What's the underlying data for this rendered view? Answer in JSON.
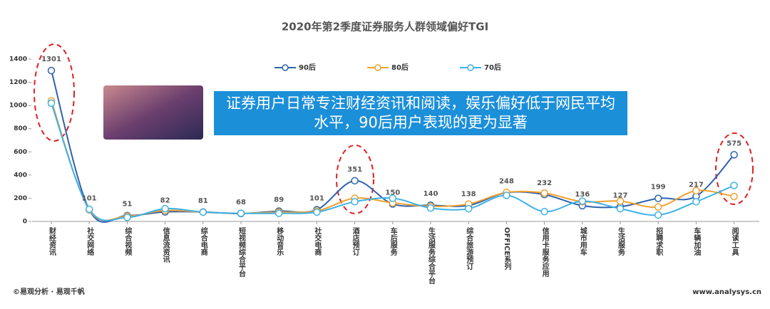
{
  "chart_data": {
    "type": "line",
    "title": "2020年第2季度证券服务人群领域偏好TGI",
    "annotation": [
      "证券用户日常专注财经资讯和阅读，娱乐偏好低于网民平均",
      "水平，90后用户表现的更为显著"
    ],
    "source": "©易观分析 · 易观千帆",
    "website": "www.analysys.cn",
    "categories": [
      "财经资讯",
      "社交网络",
      "综合视频",
      "信息流资讯",
      "综合电商",
      "短视频综合平台",
      "移动音乐",
      "社交电商",
      "酒店预订",
      "车后服务",
      "生活服务综合平台",
      "综合旅游预订",
      "OFFICE系列",
      "信用卡服务应用",
      "城市用车",
      "生活服务",
      "招聘求职",
      "车辆加油",
      "阅读工具"
    ],
    "series": [
      {
        "name": "90后",
        "color": "#2f62ad",
        "data_labels": true,
        "values": [
          1301,
          101,
          51,
          82,
          81,
          68,
          89,
          101,
          351,
          150,
          140,
          138,
          248,
          232,
          136,
          127,
          199,
          217,
          575
        ]
      },
      {
        "name": "80后",
        "color": "#f0a22e",
        "data_labels": false,
        "values": [
          1040,
          100,
          45,
          95,
          80,
          70,
          80,
          90,
          200,
          160,
          130,
          150,
          250,
          245,
          170,
          175,
          125,
          265,
          215
        ]
      },
      {
        "name": "70后",
        "color": "#3db1e6",
        "data_labels": false,
        "values": [
          1020,
          105,
          35,
          110,
          80,
          70,
          70,
          80,
          170,
          200,
          115,
          110,
          225,
          85,
          175,
          110,
          55,
          170,
          310
        ]
      }
    ],
    "ylim": [
      0,
      1400
    ],
    "yticks": [
      0,
      200,
      400,
      600,
      800,
      1000,
      1200,
      1400
    ],
    "grid": false,
    "legend": "top"
  }
}
